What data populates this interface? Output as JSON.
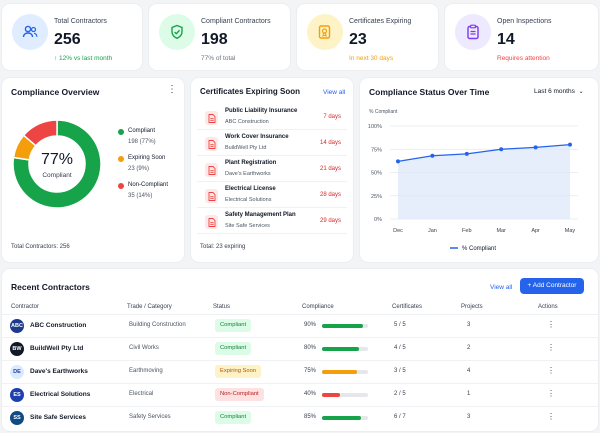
{
  "colors": {
    "green": "#16a34a",
    "orange": "#f59e0b",
    "red": "#ef4444",
    "blue": "#2563eb",
    "purple": "#7c3aed"
  },
  "stats": [
    {
      "label": "Total Contractors",
      "value": "256",
      "sub": "↑ 12% vs last month",
      "icon": "users-icon"
    },
    {
      "label": "Compliant Contractors",
      "value": "198",
      "sub": "77% of total",
      "icon": "shield-check-icon"
    },
    {
      "label": "Certificates Expiring",
      "value": "23",
      "sub": "In next 30 days",
      "icon": "certificate-icon"
    },
    {
      "label": "Open Inspections",
      "value": "14",
      "sub": "Requires attention",
      "icon": "clipboard-icon"
    }
  ],
  "overview": {
    "title": "Compliance Overview",
    "center_pct": "77%",
    "center_label": "Compliant",
    "total": "Total Contractors: 256",
    "legend": [
      {
        "label": "Compliant",
        "value": "198 (77%)",
        "count": 198
      },
      {
        "label": "Expiring Soon",
        "value": "23 (9%)",
        "count": 23
      },
      {
        "label": "Non-Compliant",
        "value": "35 (14%)",
        "count": 35
      }
    ]
  },
  "expiring": {
    "title": "Certificates Expiring Soon",
    "view_all": "View all",
    "items": [
      {
        "name": "Public Liability Insurance",
        "company": "ABC Construction",
        "days": "7 days"
      },
      {
        "name": "Work Cover Insurance",
        "company": "BuildWell Pty Ltd",
        "days": "14 days"
      },
      {
        "name": "Plant Registration",
        "company": "Dave's Earthworks",
        "days": "21 days"
      },
      {
        "name": "Electrical License",
        "company": "Electrical Solutions",
        "days": "28 days"
      },
      {
        "name": "Safety Management Plan",
        "company": "Site Safe Services",
        "days": "29 days"
      }
    ],
    "total": "Total: 23 expiring"
  },
  "trend": {
    "title": "Compliance Status Over Time",
    "range": "Last 6 months"
  },
  "chart_data": {
    "type": "line",
    "x": [
      "Dec",
      "Jan",
      "Feb",
      "Mar",
      "Apr",
      "May"
    ],
    "series": [
      {
        "name": "% Compliant",
        "values": [
          62,
          68,
          70,
          75,
          77,
          80
        ]
      }
    ],
    "ylabel": "% Compliant",
    "ylim": [
      0,
      100
    ],
    "yticks": [
      "0%",
      "25%",
      "50%",
      "75%",
      "100%"
    ],
    "grid": true,
    "legend": "bottom"
  },
  "recent": {
    "title": "Recent Contractors",
    "view_all": "View all",
    "add_button": "+ Add Contractor",
    "headers": [
      "Contractor",
      "Trade / Category",
      "Status",
      "Compliance",
      "Certificates",
      "Projects",
      "Actions"
    ],
    "rows": [
      {
        "initials": "ABC",
        "name": "ABC Construction",
        "trade": "Building Construction",
        "status": "Compliant",
        "compliance": 90,
        "pct": "90%",
        "certs": "5 / 5",
        "projects": "3",
        "avatar": "#1e3a8a"
      },
      {
        "initials": "BW",
        "name": "BuildWell Pty Ltd",
        "trade": "Civil Works",
        "status": "Compliant",
        "compliance": 80,
        "pct": "80%",
        "certs": "4 / 5",
        "projects": "2",
        "avatar": "#111827"
      },
      {
        "initials": "DE",
        "name": "Dave's Earthworks",
        "trade": "Earthmoving",
        "status": "Expiring Soon",
        "compliance": 75,
        "pct": "75%",
        "certs": "3 / 5",
        "projects": "4",
        "avatar": "#dbeafe"
      },
      {
        "initials": "ES",
        "name": "Electrical Solutions",
        "trade": "Electrical",
        "status": "Non-Compliant",
        "compliance": 40,
        "pct": "40%",
        "certs": "2 / 5",
        "projects": "1",
        "avatar": "#1e40af"
      },
      {
        "initials": "SS",
        "name": "Site Safe Services",
        "trade": "Safety Services",
        "status": "Compliant",
        "compliance": 85,
        "pct": "85%",
        "certs": "6 / 7",
        "projects": "3",
        "avatar": "#0f4c81"
      }
    ]
  }
}
